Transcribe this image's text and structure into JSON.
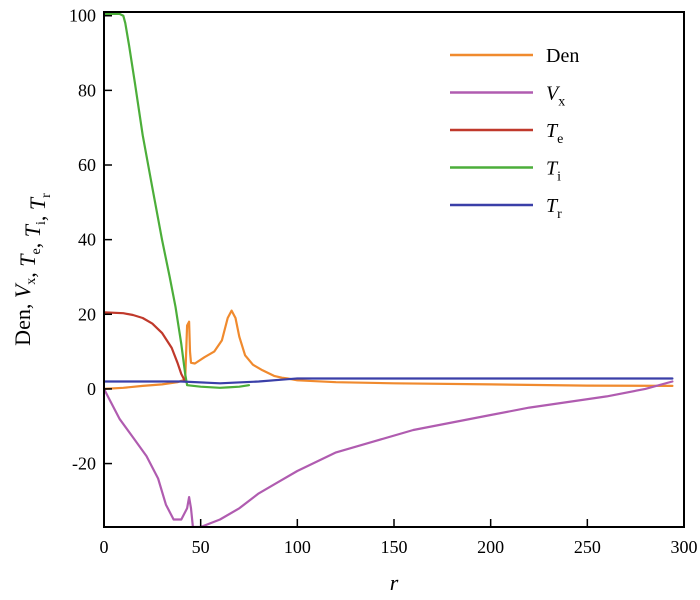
{
  "chart_data": {
    "type": "line",
    "title": "",
    "xlabel": "r",
    "ylabel_parts": [
      {
        "base": "Den, "
      },
      {
        "base": "V",
        "sub": "x",
        "italic": true
      },
      {
        "base": ", "
      },
      {
        "base": "T",
        "sub": "e",
        "italic": true
      },
      {
        "base": ", "
      },
      {
        "base": "T",
        "sub": "i",
        "italic": true
      },
      {
        "base": ", "
      },
      {
        "base": "T",
        "sub": "r",
        "italic": true
      }
    ],
    "xlim": [
      0,
      300
    ],
    "ylim": [
      -37,
      101
    ],
    "x_ticks": [
      0,
      50,
      100,
      150,
      200,
      250,
      300
    ],
    "y_ticks": [
      -20,
      0,
      20,
      40,
      60,
      80,
      100
    ],
    "legend_position": "top-right",
    "grid": false,
    "series": [
      {
        "name": "Den",
        "legend_label": {
          "base": "Den",
          "sub": "",
          "italic": false
        },
        "color": "#f08a2e",
        "points": [
          [
            0,
            0
          ],
          [
            10,
            0.3
          ],
          [
            20,
            0.8
          ],
          [
            30,
            1.2
          ],
          [
            38,
            1.8
          ],
          [
            42,
            2.5
          ],
          [
            43,
            17
          ],
          [
            44,
            18
          ],
          [
            44.5,
            10
          ],
          [
            45,
            7
          ],
          [
            47,
            6.8
          ],
          [
            52,
            8.5
          ],
          [
            57,
            10
          ],
          [
            61,
            13
          ],
          [
            64,
            19
          ],
          [
            66,
            21
          ],
          [
            68,
            19
          ],
          [
            70,
            14
          ],
          [
            73,
            9
          ],
          [
            77,
            6.5
          ],
          [
            82,
            5
          ],
          [
            88,
            3.5
          ],
          [
            92,
            3
          ],
          [
            95,
            2.8
          ],
          [
            100,
            2.3
          ],
          [
            120,
            1.8
          ],
          [
            150,
            1.5
          ],
          [
            200,
            1.2
          ],
          [
            250,
            0.9
          ],
          [
            294,
            0.8
          ]
        ]
      },
      {
        "name": "Vx",
        "legend_label": {
          "base": "V",
          "sub": "x",
          "italic": true
        },
        "color": "#b05cb0",
        "points": [
          [
            0,
            0
          ],
          [
            3,
            -3
          ],
          [
            8,
            -8
          ],
          [
            15,
            -13
          ],
          [
            22,
            -18
          ],
          [
            28,
            -24
          ],
          [
            32,
            -31
          ],
          [
            36,
            -35
          ],
          [
            40,
            -35
          ],
          [
            43,
            -32
          ],
          [
            44,
            -29
          ],
          [
            45,
            -32
          ],
          [
            46,
            -37
          ],
          [
            50,
            -37
          ],
          [
            60,
            -35
          ],
          [
            70,
            -32
          ],
          [
            80,
            -28
          ],
          [
            90,
            -25
          ],
          [
            100,
            -22
          ],
          [
            120,
            -17
          ],
          [
            140,
            -14
          ],
          [
            160,
            -11
          ],
          [
            180,
            -9
          ],
          [
            200,
            -7
          ],
          [
            220,
            -5
          ],
          [
            240,
            -3.5
          ],
          [
            260,
            -2
          ],
          [
            280,
            0
          ],
          [
            294,
            2
          ]
        ]
      },
      {
        "name": "Te",
        "legend_label": {
          "base": "T",
          "sub": "e",
          "italic": true
        },
        "color": "#c0392b",
        "points": [
          [
            0,
            20.5
          ],
          [
            10,
            20.3
          ],
          [
            15,
            19.8
          ],
          [
            20,
            19
          ],
          [
            25,
            17.5
          ],
          [
            30,
            15
          ],
          [
            35,
            11
          ],
          [
            38,
            7
          ],
          [
            40,
            4
          ],
          [
            42,
            2
          ]
        ]
      },
      {
        "name": "Ti",
        "legend_label": {
          "base": "T",
          "sub": "i",
          "italic": true
        },
        "color": "#4cae3a",
        "points": [
          [
            0,
            100.5
          ],
          [
            8,
            100.5
          ],
          [
            10,
            100
          ],
          [
            11,
            98
          ],
          [
            13,
            92
          ],
          [
            16,
            82
          ],
          [
            20,
            68
          ],
          [
            25,
            54
          ],
          [
            30,
            40
          ],
          [
            34,
            30
          ],
          [
            37,
            22
          ],
          [
            40,
            12
          ],
          [
            42,
            4
          ],
          [
            43,
            1
          ],
          [
            50,
            0.6
          ],
          [
            60,
            0.3
          ],
          [
            64,
            0.4
          ],
          [
            70,
            0.6
          ],
          [
            75,
            1
          ]
        ]
      },
      {
        "name": "Tr",
        "legend_label": {
          "base": "T",
          "sub": "r",
          "italic": true
        },
        "color": "#3a3fa8",
        "points": [
          [
            0,
            2
          ],
          [
            20,
            2
          ],
          [
            40,
            2
          ],
          [
            60,
            1.5
          ],
          [
            80,
            2
          ],
          [
            95,
            2.6
          ],
          [
            100,
            2.8
          ],
          [
            150,
            2.8
          ],
          [
            200,
            2.8
          ],
          [
            250,
            2.8
          ],
          [
            294,
            2.8
          ]
        ]
      }
    ]
  }
}
